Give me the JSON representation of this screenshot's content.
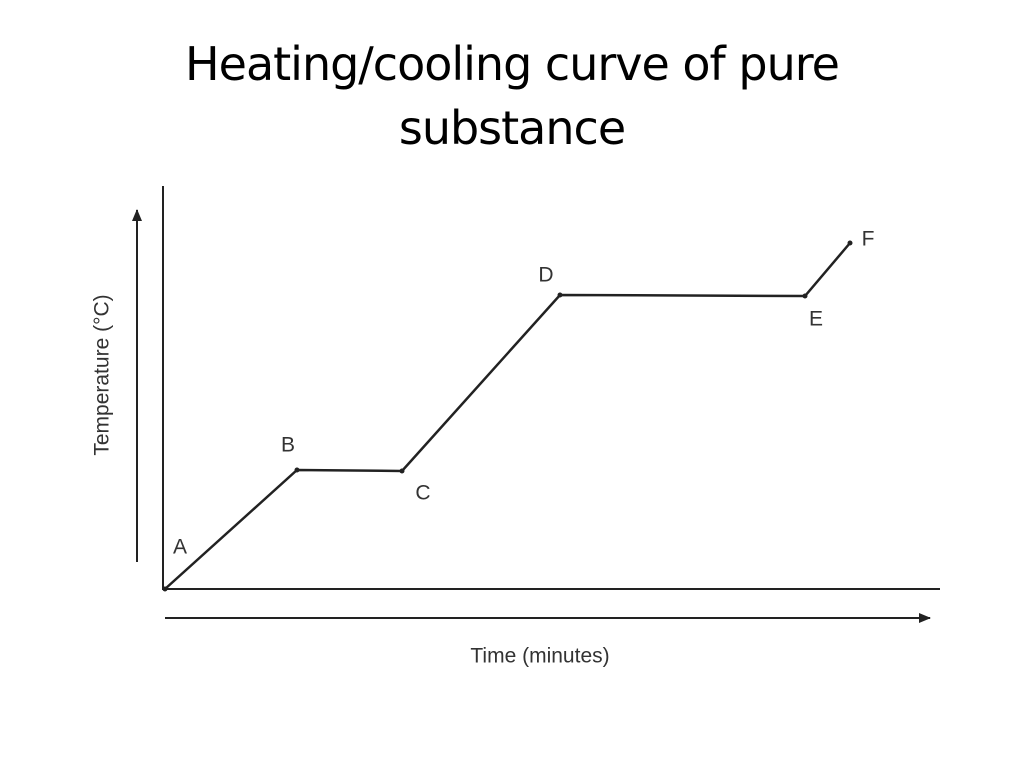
{
  "title": "Heating/cooling curve of pure substance",
  "axes": {
    "x_label": "Time (minutes)",
    "y_label": "Temperature (°C)"
  },
  "points": [
    {
      "label": "A"
    },
    {
      "label": "B"
    },
    {
      "label": "C"
    },
    {
      "label": "D"
    },
    {
      "label": "E"
    },
    {
      "label": "F"
    }
  ]
}
